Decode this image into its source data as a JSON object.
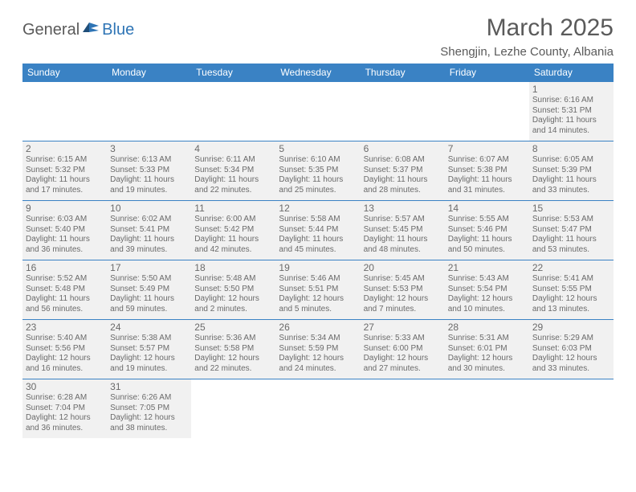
{
  "logo": {
    "general": "General",
    "blue": "Blue"
  },
  "title": "March 2025",
  "location": "Shengjin, Lezhe County, Albania",
  "colors": {
    "header_bg": "#3a82c4",
    "header_text": "#ffffff",
    "cell_bg": "#f1f1f1",
    "text": "#6a6a6a",
    "border": "#3a82c4"
  },
  "weekdays": [
    "Sunday",
    "Monday",
    "Tuesday",
    "Wednesday",
    "Thursday",
    "Friday",
    "Saturday"
  ],
  "weeks": [
    [
      null,
      null,
      null,
      null,
      null,
      null,
      {
        "n": "1",
        "sr": "Sunrise: 6:16 AM",
        "ss": "Sunset: 5:31 PM",
        "d1": "Daylight: 11 hours",
        "d2": "and 14 minutes."
      }
    ],
    [
      {
        "n": "2",
        "sr": "Sunrise: 6:15 AM",
        "ss": "Sunset: 5:32 PM",
        "d1": "Daylight: 11 hours",
        "d2": "and 17 minutes."
      },
      {
        "n": "3",
        "sr": "Sunrise: 6:13 AM",
        "ss": "Sunset: 5:33 PM",
        "d1": "Daylight: 11 hours",
        "d2": "and 19 minutes."
      },
      {
        "n": "4",
        "sr": "Sunrise: 6:11 AM",
        "ss": "Sunset: 5:34 PM",
        "d1": "Daylight: 11 hours",
        "d2": "and 22 minutes."
      },
      {
        "n": "5",
        "sr": "Sunrise: 6:10 AM",
        "ss": "Sunset: 5:35 PM",
        "d1": "Daylight: 11 hours",
        "d2": "and 25 minutes."
      },
      {
        "n": "6",
        "sr": "Sunrise: 6:08 AM",
        "ss": "Sunset: 5:37 PM",
        "d1": "Daylight: 11 hours",
        "d2": "and 28 minutes."
      },
      {
        "n": "7",
        "sr": "Sunrise: 6:07 AM",
        "ss": "Sunset: 5:38 PM",
        "d1": "Daylight: 11 hours",
        "d2": "and 31 minutes."
      },
      {
        "n": "8",
        "sr": "Sunrise: 6:05 AM",
        "ss": "Sunset: 5:39 PM",
        "d1": "Daylight: 11 hours",
        "d2": "and 33 minutes."
      }
    ],
    [
      {
        "n": "9",
        "sr": "Sunrise: 6:03 AM",
        "ss": "Sunset: 5:40 PM",
        "d1": "Daylight: 11 hours",
        "d2": "and 36 minutes."
      },
      {
        "n": "10",
        "sr": "Sunrise: 6:02 AM",
        "ss": "Sunset: 5:41 PM",
        "d1": "Daylight: 11 hours",
        "d2": "and 39 minutes."
      },
      {
        "n": "11",
        "sr": "Sunrise: 6:00 AM",
        "ss": "Sunset: 5:42 PM",
        "d1": "Daylight: 11 hours",
        "d2": "and 42 minutes."
      },
      {
        "n": "12",
        "sr": "Sunrise: 5:58 AM",
        "ss": "Sunset: 5:44 PM",
        "d1": "Daylight: 11 hours",
        "d2": "and 45 minutes."
      },
      {
        "n": "13",
        "sr": "Sunrise: 5:57 AM",
        "ss": "Sunset: 5:45 PM",
        "d1": "Daylight: 11 hours",
        "d2": "and 48 minutes."
      },
      {
        "n": "14",
        "sr": "Sunrise: 5:55 AM",
        "ss": "Sunset: 5:46 PM",
        "d1": "Daylight: 11 hours",
        "d2": "and 50 minutes."
      },
      {
        "n": "15",
        "sr": "Sunrise: 5:53 AM",
        "ss": "Sunset: 5:47 PM",
        "d1": "Daylight: 11 hours",
        "d2": "and 53 minutes."
      }
    ],
    [
      {
        "n": "16",
        "sr": "Sunrise: 5:52 AM",
        "ss": "Sunset: 5:48 PM",
        "d1": "Daylight: 11 hours",
        "d2": "and 56 minutes."
      },
      {
        "n": "17",
        "sr": "Sunrise: 5:50 AM",
        "ss": "Sunset: 5:49 PM",
        "d1": "Daylight: 11 hours",
        "d2": "and 59 minutes."
      },
      {
        "n": "18",
        "sr": "Sunrise: 5:48 AM",
        "ss": "Sunset: 5:50 PM",
        "d1": "Daylight: 12 hours",
        "d2": "and 2 minutes."
      },
      {
        "n": "19",
        "sr": "Sunrise: 5:46 AM",
        "ss": "Sunset: 5:51 PM",
        "d1": "Daylight: 12 hours",
        "d2": "and 5 minutes."
      },
      {
        "n": "20",
        "sr": "Sunrise: 5:45 AM",
        "ss": "Sunset: 5:53 PM",
        "d1": "Daylight: 12 hours",
        "d2": "and 7 minutes."
      },
      {
        "n": "21",
        "sr": "Sunrise: 5:43 AM",
        "ss": "Sunset: 5:54 PM",
        "d1": "Daylight: 12 hours",
        "d2": "and 10 minutes."
      },
      {
        "n": "22",
        "sr": "Sunrise: 5:41 AM",
        "ss": "Sunset: 5:55 PM",
        "d1": "Daylight: 12 hours",
        "d2": "and 13 minutes."
      }
    ],
    [
      {
        "n": "23",
        "sr": "Sunrise: 5:40 AM",
        "ss": "Sunset: 5:56 PM",
        "d1": "Daylight: 12 hours",
        "d2": "and 16 minutes."
      },
      {
        "n": "24",
        "sr": "Sunrise: 5:38 AM",
        "ss": "Sunset: 5:57 PM",
        "d1": "Daylight: 12 hours",
        "d2": "and 19 minutes."
      },
      {
        "n": "25",
        "sr": "Sunrise: 5:36 AM",
        "ss": "Sunset: 5:58 PM",
        "d1": "Daylight: 12 hours",
        "d2": "and 22 minutes."
      },
      {
        "n": "26",
        "sr": "Sunrise: 5:34 AM",
        "ss": "Sunset: 5:59 PM",
        "d1": "Daylight: 12 hours",
        "d2": "and 24 minutes."
      },
      {
        "n": "27",
        "sr": "Sunrise: 5:33 AM",
        "ss": "Sunset: 6:00 PM",
        "d1": "Daylight: 12 hours",
        "d2": "and 27 minutes."
      },
      {
        "n": "28",
        "sr": "Sunrise: 5:31 AM",
        "ss": "Sunset: 6:01 PM",
        "d1": "Daylight: 12 hours",
        "d2": "and 30 minutes."
      },
      {
        "n": "29",
        "sr": "Sunrise: 5:29 AM",
        "ss": "Sunset: 6:03 PM",
        "d1": "Daylight: 12 hours",
        "d2": "and 33 minutes."
      }
    ],
    [
      {
        "n": "30",
        "sr": "Sunrise: 6:28 AM",
        "ss": "Sunset: 7:04 PM",
        "d1": "Daylight: 12 hours",
        "d2": "and 36 minutes."
      },
      {
        "n": "31",
        "sr": "Sunrise: 6:26 AM",
        "ss": "Sunset: 7:05 PM",
        "d1": "Daylight: 12 hours",
        "d2": "and 38 minutes."
      },
      null,
      null,
      null,
      null,
      null
    ]
  ]
}
